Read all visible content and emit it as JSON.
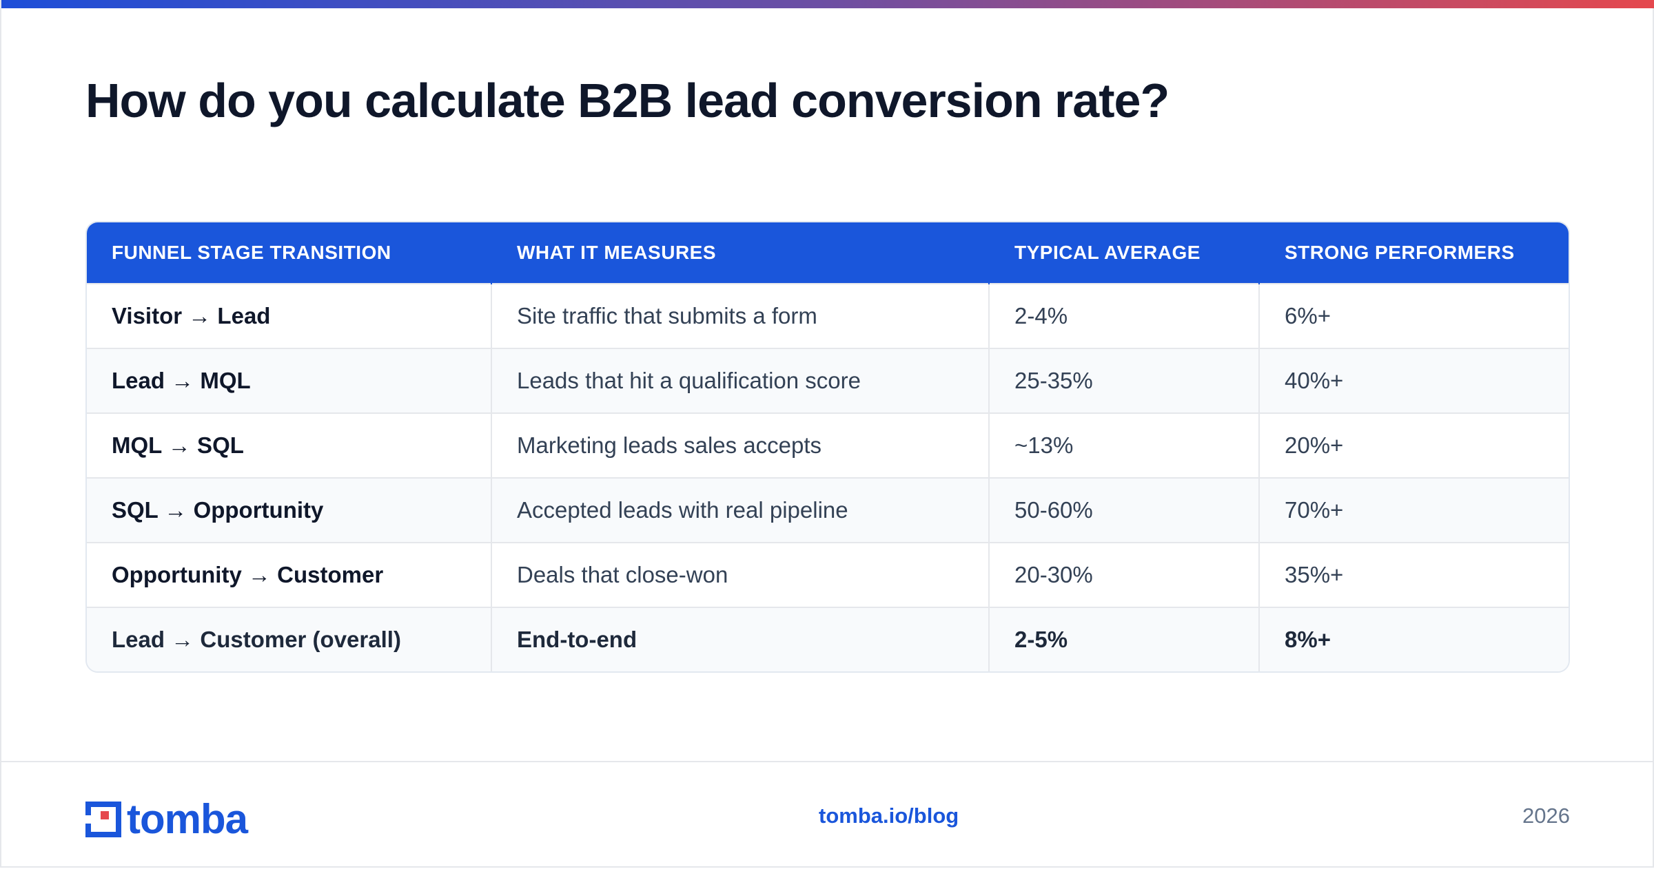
{
  "header": {
    "title": "How do you calculate B2B lead conversion rate?"
  },
  "table": {
    "columns": [
      "FUNNEL STAGE TRANSITION",
      "WHAT IT MEASURES",
      "TYPICAL AVERAGE",
      "STRONG PERFORMERS"
    ],
    "rows": [
      [
        "Visitor → Lead",
        "Site traffic that submits a form",
        "2-4%",
        "6%+"
      ],
      [
        "Lead → MQL",
        "Leads that hit a qualification score",
        "25-35%",
        "40%+"
      ],
      [
        "MQL → SQL",
        "Marketing leads sales accepts",
        "~13%",
        "20%+"
      ],
      [
        "SQL → Opportunity",
        "Accepted leads with real pipeline",
        "50-60%",
        "70%+"
      ],
      [
        "Opportunity → Customer",
        "Deals that close-won",
        "20-30%",
        "35%+"
      ],
      [
        "Lead → Customer (overall)",
        "End-to-end",
        "2-5%",
        "8%+"
      ]
    ]
  },
  "footer": {
    "logo": "tomba",
    "link": "tomba.io/blog",
    "year": "2026"
  }
}
